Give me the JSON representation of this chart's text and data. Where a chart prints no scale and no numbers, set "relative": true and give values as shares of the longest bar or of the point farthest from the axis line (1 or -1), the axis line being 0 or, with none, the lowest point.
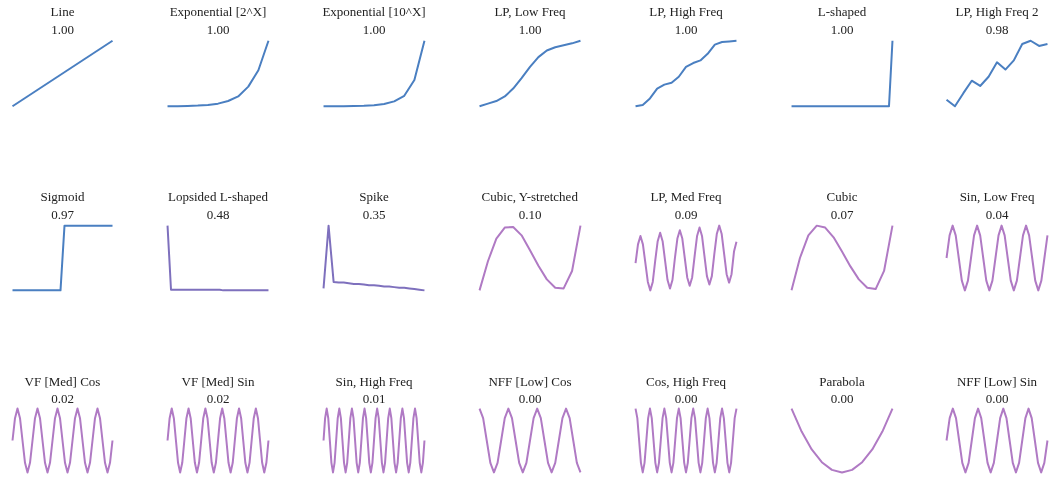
{
  "chart_data": [
    {
      "type": "line",
      "relative": true,
      "title": "Line",
      "subtitle": "1.00",
      "categories": [
        null,
        null
      ],
      "series": [
        {
          "color": "#4a7fc1",
          "values": [
            0,
            1
          ]
        }
      ]
    },
    {
      "type": "line",
      "relative": true,
      "title": "Exponential [2^X]",
      "subtitle": "1.00",
      "categories": [
        null,
        null,
        null,
        null,
        null,
        null,
        null,
        null,
        null,
        null,
        null
      ],
      "series": [
        {
          "color": "#4a7fc1",
          "values": [
            0,
            0.002,
            0.005,
            0.01,
            0.02,
            0.04,
            0.08,
            0.15,
            0.3,
            0.55,
            1
          ]
        }
      ]
    },
    {
      "type": "line",
      "relative": true,
      "title": "Exponential [10^X]",
      "subtitle": "1.00",
      "categories": [
        null,
        null,
        null,
        null,
        null,
        null,
        null,
        null,
        null,
        null,
        null
      ],
      "series": [
        {
          "color": "#4a7fc1",
          "values": [
            0,
            0.001,
            0.002,
            0.004,
            0.008,
            0.016,
            0.035,
            0.075,
            0.16,
            0.4,
            1
          ]
        }
      ]
    },
    {
      "type": "line",
      "relative": true,
      "title": "LP, Low Freq",
      "subtitle": "1.00",
      "categories": [
        null,
        null,
        null,
        null,
        null,
        null,
        null,
        null,
        null,
        null,
        null,
        null,
        null
      ],
      "series": [
        {
          "color": "#4a7fc1",
          "values": [
            0,
            0.04,
            0.08,
            0.15,
            0.27,
            0.43,
            0.6,
            0.75,
            0.85,
            0.9,
            0.93,
            0.96,
            1
          ]
        }
      ]
    },
    {
      "type": "line",
      "relative": true,
      "title": "LP, High Freq",
      "subtitle": "1.00",
      "categories": [
        null,
        null,
        null,
        null,
        null,
        null,
        null,
        null,
        null,
        null,
        null,
        null,
        null,
        null,
        null
      ],
      "series": [
        {
          "color": "#4a7fc1",
          "values": [
            0,
            0.02,
            0.12,
            0.27,
            0.33,
            0.36,
            0.45,
            0.6,
            0.66,
            0.7,
            0.8,
            0.94,
            0.98,
            0.99,
            1
          ]
        }
      ]
    },
    {
      "type": "line",
      "relative": true,
      "title": "L-shaped",
      "subtitle": "1.00",
      "categories": [
        null,
        null,
        null,
        null,
        null,
        null,
        null,
        null,
        null,
        null,
        null,
        null,
        null,
        null,
        null,
        null,
        null,
        null,
        null,
        null,
        null,
        null,
        null,
        null,
        null,
        null,
        null,
        null,
        null,
        null
      ],
      "series": [
        {
          "color": "#4a7fc1",
          "values": [
            0,
            0,
            0,
            0,
            0,
            0,
            0,
            0,
            0,
            0,
            0,
            0,
            0,
            0,
            0,
            0,
            0,
            0,
            0,
            0,
            0,
            0,
            0,
            0,
            0,
            0,
            0,
            0,
            0,
            1
          ]
        }
      ]
    },
    {
      "type": "line",
      "relative": true,
      "title": "LP, High Freq 2",
      "subtitle": "0.98",
      "categories": [
        null,
        null,
        null,
        null,
        null,
        null,
        null,
        null,
        null,
        null,
        null,
        null,
        null
      ],
      "series": [
        {
          "color": "#4a7fc1",
          "values": [
            0.1,
            0,
            0.2,
            0.39,
            0.31,
            0.45,
            0.67,
            0.56,
            0.7,
            0.95,
            1,
            0.92,
            0.95
          ]
        }
      ]
    },
    {
      "type": "line",
      "relative": true,
      "title": "Sigmoid",
      "subtitle": "0.97",
      "categories": [
        null,
        null,
        null,
        null,
        null,
        null,
        null,
        null,
        null,
        null,
        null,
        null,
        null,
        null,
        null,
        null,
        null,
        null,
        null,
        null,
        null,
        null,
        null,
        null,
        null,
        null
      ],
      "series": [
        {
          "color": "#4a7fc1",
          "values": [
            0,
            0,
            0,
            0,
            0,
            0,
            0,
            0,
            0,
            0,
            0,
            0,
            0,
            1,
            1,
            1,
            1,
            1,
            1,
            1,
            1,
            1,
            1,
            1,
            1,
            1
          ]
        }
      ]
    },
    {
      "type": "line",
      "relative": true,
      "title": "Lopsided L-shaped",
      "subtitle": "0.48",
      "categories": [
        null,
        null,
        null,
        null,
        null,
        null,
        null,
        null,
        null,
        null,
        null,
        null,
        null,
        null,
        null,
        null,
        null,
        null,
        null,
        null,
        null,
        null,
        null,
        null,
        null,
        null,
        null,
        null,
        null,
        null
      ],
      "series": [
        {
          "color": "#7e70bd",
          "values": [
            1,
            0.01,
            0.01,
            0.01,
            0.01,
            0.01,
            0.01,
            0.01,
            0.01,
            0.01,
            0.01,
            0.01,
            0.01,
            0.01,
            0.01,
            0.01,
            0,
            0,
            0,
            0,
            0,
            0,
            0,
            0,
            0,
            0,
            0,
            0,
            0,
            0
          ]
        }
      ]
    },
    {
      "type": "line",
      "relative": true,
      "title": "Spike",
      "subtitle": "0.35",
      "categories": [
        null,
        null,
        null,
        null,
        null,
        null,
        null,
        null,
        null,
        null,
        null,
        null,
        null,
        null,
        null,
        null,
        null,
        null,
        null,
        null,
        null
      ],
      "series": [
        {
          "color": "#7e70bd",
          "values": [
            0.03,
            1,
            0.13,
            0.12,
            0.12,
            0.11,
            0.1,
            0.1,
            0.09,
            0.08,
            0.08,
            0.07,
            0.06,
            0.06,
            0.05,
            0.04,
            0.04,
            0.03,
            0.02,
            0.01,
            0
          ]
        }
      ]
    },
    {
      "type": "line",
      "relative": true,
      "title": "Cubic, Y-stretched",
      "subtitle": "0.10",
      "categories": [
        null,
        null,
        null,
        null,
        null,
        null,
        null,
        null,
        null,
        null,
        null,
        null,
        null
      ],
      "series": [
        {
          "color": "#b07ac4",
          "values": [
            0,
            0.45,
            0.8,
            0.97,
            0.98,
            0.85,
            0.62,
            0.38,
            0.17,
            0.04,
            0.03,
            0.3,
            1
          ]
        }
      ]
    },
    {
      "type": "line",
      "relative": true,
      "title": "LP, Med Freq",
      "subtitle": "0.09",
      "categories": [
        null,
        null,
        null,
        null,
        null,
        null,
        null,
        null,
        null,
        null,
        null,
        null,
        null,
        null,
        null,
        null,
        null,
        null,
        null,
        null,
        null,
        null,
        null,
        null,
        null,
        null,
        null,
        null,
        null,
        null,
        null,
        null,
        null,
        null,
        null,
        null,
        null,
        null,
        null,
        null,
        null,
        null
      ],
      "series": [
        {
          "color": "#b07ac4",
          "values": [
            0.42,
            0.71,
            0.84,
            0.71,
            0.42,
            0.13,
            0,
            0.13,
            0.46,
            0.76,
            0.89,
            0.76,
            0.46,
            0.16,
            0.03,
            0.16,
            0.5,
            0.8,
            0.93,
            0.8,
            0.5,
            0.2,
            0.07,
            0.2,
            0.53,
            0.84,
            0.97,
            0.84,
            0.53,
            0.22,
            0.09,
            0.22,
            0.56,
            0.87,
            1,
            0.87,
            0.56,
            0.25,
            0.12,
            0.25,
            0.6,
            0.75
          ]
        }
      ]
    },
    {
      "type": "line",
      "relative": true,
      "title": "Cubic",
      "subtitle": "0.07",
      "categories": [
        null,
        null,
        null,
        null,
        null,
        null,
        null,
        null,
        null,
        null,
        null,
        null,
        null
      ],
      "series": [
        {
          "color": "#b07ac4",
          "values": [
            0,
            0.5,
            0.85,
            1,
            0.97,
            0.82,
            0.6,
            0.37,
            0.17,
            0.04,
            0.02,
            0.3,
            1
          ]
        }
      ]
    },
    {
      "type": "line",
      "relative": true,
      "title": "Sin, Low Freq",
      "subtitle": "0.04",
      "categories": [
        null,
        null,
        null,
        null,
        null,
        null,
        null,
        null,
        null,
        null,
        null,
        null,
        null,
        null,
        null,
        null,
        null,
        null,
        null,
        null,
        null,
        null,
        null,
        null,
        null,
        null,
        null,
        null,
        null,
        null,
        null,
        null,
        null,
        null
      ],
      "series": [
        {
          "color": "#b07ac4",
          "values": [
            0.5,
            0.85,
            1,
            0.85,
            0.5,
            0.15,
            0,
            0.15,
            0.5,
            0.85,
            1,
            0.85,
            0.5,
            0.15,
            0,
            0.15,
            0.5,
            0.85,
            1,
            0.85,
            0.5,
            0.15,
            0,
            0.15,
            0.5,
            0.85,
            1,
            0.85,
            0.5,
            0.15,
            0,
            0.15,
            0.5,
            0.85
          ]
        }
      ]
    },
    {
      "type": "line",
      "relative": true,
      "title": "VF [Med] Cos",
      "subtitle": "0.02",
      "categories": [
        null,
        null,
        null,
        null,
        null,
        null,
        null,
        null,
        null,
        null,
        null,
        null,
        null,
        null,
        null,
        null,
        null,
        null,
        null,
        null,
        null,
        null,
        null,
        null,
        null,
        null,
        null,
        null,
        null,
        null,
        null,
        null,
        null,
        null,
        null,
        null,
        null,
        null,
        null,
        null,
        null
      ],
      "series": [
        {
          "color": "#b07ac4",
          "values": [
            0.5,
            0.85,
            1,
            0.85,
            0.5,
            0.15,
            0,
            0.15,
            0.5,
            0.85,
            1,
            0.85,
            0.5,
            0.15,
            0,
            0.15,
            0.5,
            0.85,
            1,
            0.85,
            0.5,
            0.15,
            0,
            0.15,
            0.5,
            0.85,
            1,
            0.85,
            0.5,
            0.15,
            0,
            0.15,
            0.5,
            0.85,
            1,
            0.85,
            0.5,
            0.15,
            0,
            0.15,
            0.5
          ]
        }
      ]
    },
    {
      "type": "line",
      "relative": true,
      "title": "VF [Med] Sin",
      "subtitle": "0.02",
      "categories": [
        null,
        null,
        null,
        null,
        null,
        null,
        null,
        null,
        null,
        null,
        null,
        null,
        null,
        null,
        null,
        null,
        null,
        null,
        null,
        null,
        null,
        null,
        null,
        null,
        null,
        null,
        null,
        null,
        null,
        null,
        null,
        null,
        null,
        null,
        null,
        null,
        null,
        null,
        null,
        null,
        null,
        null,
        null,
        null,
        null,
        null,
        null,
        null,
        null
      ],
      "series": [
        {
          "color": "#b07ac4",
          "values": [
            0.5,
            0.85,
            1,
            0.85,
            0.5,
            0.15,
            0,
            0.15,
            0.5,
            0.85,
            1,
            0.85,
            0.5,
            0.15,
            0,
            0.15,
            0.5,
            0.85,
            1,
            0.85,
            0.5,
            0.15,
            0,
            0.15,
            0.5,
            0.85,
            1,
            0.85,
            0.5,
            0.15,
            0,
            0.15,
            0.5,
            0.85,
            1,
            0.85,
            0.5,
            0.15,
            0,
            0.15,
            0.5,
            0.85,
            1,
            0.85,
            0.5,
            0.15,
            0,
            0.15,
            0.5
          ]
        }
      ]
    },
    {
      "type": "line",
      "relative": true,
      "title": "Sin, High Freq",
      "subtitle": "0.01",
      "categories": [
        null,
        null,
        null,
        null,
        null,
        null,
        null,
        null,
        null,
        null,
        null,
        null,
        null,
        null,
        null,
        null,
        null,
        null,
        null,
        null,
        null,
        null,
        null,
        null,
        null,
        null,
        null,
        null,
        null,
        null,
        null,
        null,
        null,
        null,
        null,
        null,
        null,
        null,
        null,
        null,
        null,
        null,
        null,
        null,
        null,
        null,
        null,
        null,
        null,
        null,
        null,
        null,
        null,
        null,
        null,
        null,
        null,
        null,
        null,
        null,
        null,
        null,
        null,
        null,
        null
      ],
      "series": [
        {
          "color": "#b07ac4",
          "values": [
            0.5,
            0.85,
            1,
            0.85,
            0.5,
            0.15,
            0,
            0.15,
            0.5,
            0.85,
            1,
            0.85,
            0.5,
            0.15,
            0,
            0.15,
            0.5,
            0.85,
            1,
            0.85,
            0.5,
            0.15,
            0,
            0.15,
            0.5,
            0.85,
            1,
            0.85,
            0.5,
            0.15,
            0,
            0.15,
            0.5,
            0.85,
            1,
            0.85,
            0.5,
            0.15,
            0,
            0.15,
            0.5,
            0.85,
            1,
            0.85,
            0.5,
            0.15,
            0,
            0.15,
            0.5,
            0.85,
            1,
            0.85,
            0.5,
            0.15,
            0,
            0.15,
            0.5,
            0.85,
            1,
            0.85,
            0.5,
            0.15,
            0,
            0.15,
            0.5
          ]
        }
      ]
    },
    {
      "type": "line",
      "relative": true,
      "title": "NFF [Low] Cos",
      "subtitle": "0.00",
      "categories": [
        null,
        null,
        null,
        null,
        null,
        null,
        null,
        null,
        null,
        null,
        null,
        null,
        null,
        null,
        null,
        null,
        null,
        null,
        null,
        null,
        null,
        null,
        null,
        null,
        null,
        null,
        null,
        null,
        null
      ],
      "series": [
        {
          "color": "#b07ac4",
          "values": [
            1,
            0.85,
            0.5,
            0.15,
            0,
            0.15,
            0.5,
            0.85,
            1,
            0.85,
            0.5,
            0.15,
            0,
            0.15,
            0.5,
            0.85,
            1,
            0.85,
            0.5,
            0.15,
            0,
            0.15,
            0.5,
            0.85,
            1,
            0.85,
            0.5,
            0.15,
            0
          ]
        }
      ]
    },
    {
      "type": "line",
      "relative": true,
      "title": "Cos, High Freq",
      "subtitle": "0.00",
      "categories": [
        null,
        null,
        null,
        null,
        null,
        null,
        null,
        null,
        null,
        null,
        null,
        null,
        null,
        null,
        null,
        null,
        null,
        null,
        null,
        null,
        null,
        null,
        null,
        null,
        null,
        null,
        null,
        null,
        null,
        null,
        null,
        null,
        null,
        null,
        null,
        null,
        null,
        null,
        null,
        null,
        null,
        null,
        null,
        null,
        null,
        null,
        null,
        null,
        null,
        null,
        null,
        null,
        null,
        null,
        null,
        null,
        null
      ],
      "series": [
        {
          "color": "#b07ac4",
          "values": [
            1,
            0.85,
            0.5,
            0.15,
            0,
            0.15,
            0.5,
            0.85,
            1,
            0.85,
            0.5,
            0.15,
            0,
            0.15,
            0.5,
            0.85,
            1,
            0.85,
            0.5,
            0.15,
            0,
            0.15,
            0.5,
            0.85,
            1,
            0.85,
            0.5,
            0.15,
            0,
            0.15,
            0.5,
            0.85,
            1,
            0.85,
            0.5,
            0.15,
            0,
            0.15,
            0.5,
            0.85,
            1,
            0.85,
            0.5,
            0.15,
            0,
            0.15,
            0.5,
            0.85,
            1,
            0.85,
            0.5,
            0.15,
            0,
            0.15,
            0.5,
            0.85,
            1
          ]
        }
      ]
    },
    {
      "type": "line",
      "relative": true,
      "title": "Parabola",
      "subtitle": "0.00",
      "categories": [
        null,
        null,
        null,
        null,
        null,
        null,
        null,
        null,
        null,
        null,
        null
      ],
      "series": [
        {
          "color": "#b07ac4",
          "values": [
            1,
            0.64,
            0.36,
            0.16,
            0.04,
            0,
            0.04,
            0.16,
            0.36,
            0.64,
            1
          ]
        }
      ]
    },
    {
      "type": "line",
      "relative": true,
      "title": "NFF [Low] Sin",
      "subtitle": "0.00",
      "categories": [
        null,
        null,
        null,
        null,
        null,
        null,
        null,
        null,
        null,
        null,
        null,
        null,
        null,
        null,
        null,
        null,
        null,
        null,
        null,
        null,
        null,
        null,
        null,
        null,
        null,
        null,
        null,
        null,
        null,
        null,
        null,
        null,
        null
      ],
      "series": [
        {
          "color": "#b07ac4",
          "values": [
            0.5,
            0.85,
            1,
            0.85,
            0.5,
            0.15,
            0,
            0.15,
            0.5,
            0.85,
            1,
            0.85,
            0.5,
            0.15,
            0,
            0.15,
            0.5,
            0.85,
            1,
            0.85,
            0.5,
            0.15,
            0,
            0.15,
            0.5,
            0.85,
            1,
            0.85,
            0.5,
            0.15,
            0,
            0.15,
            0.5
          ]
        }
      ]
    }
  ]
}
